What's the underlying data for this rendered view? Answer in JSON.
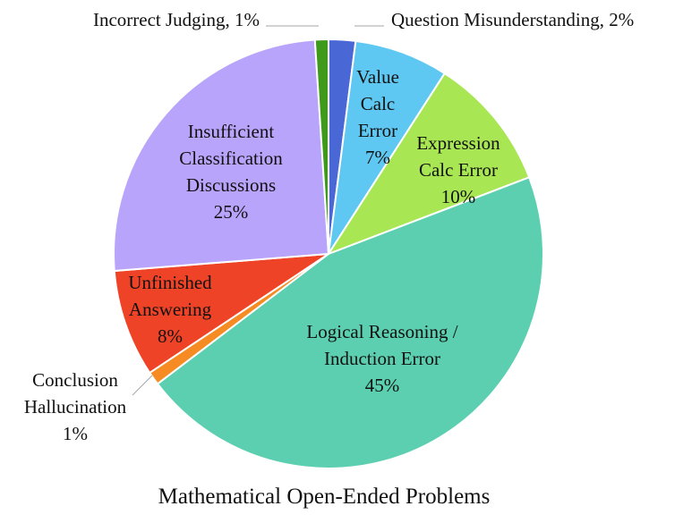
{
  "chart_data": {
    "type": "pie",
    "title": "Mathematical Open-Ended Problems",
    "slices": [
      {
        "label": "Question Misunderstanding",
        "value": 2,
        "percent_label": "2%",
        "color": "#4a67d6"
      },
      {
        "label": "Value Calc Error",
        "value": 7,
        "percent_label": "7%",
        "color": "#5ec8f2"
      },
      {
        "label": "Expression Calc Error",
        "value": 10,
        "percent_label": "10%",
        "color": "#a8e653"
      },
      {
        "label": "Logical Reasoning / Induction Error",
        "value": 45,
        "percent_label": "45%",
        "color": "#5ccfb0"
      },
      {
        "label": "Conclusion Hallucination",
        "value": 1,
        "percent_label": "1%",
        "color": "#f58b22"
      },
      {
        "label": "Unfinished Answering",
        "value": 8,
        "percent_label": "8%",
        "color": "#ee4326"
      },
      {
        "label": "Insufficient Classification Discussions",
        "value": 25,
        "percent_label": "25%",
        "color": "#b9a4fb"
      },
      {
        "label": "Incorrect Judging",
        "value": 1,
        "percent_label": "1%",
        "color": "#3f9a1c"
      }
    ],
    "display_labels": [
      [
        "Question Misunderstanding, 2%"
      ],
      [
        "Value",
        "Calc",
        "Error",
        "7%"
      ],
      [
        "Expression",
        "Calc Error",
        "10%"
      ],
      [
        "Logical Reasoning /",
        "Induction Error",
        "45%"
      ],
      [
        "Conclusion",
        "Hallucination",
        "1%"
      ],
      [
        "Unfinished",
        "Answering",
        "8%"
      ],
      [
        "Insufficient",
        "Classification",
        "Discussions",
        "25%"
      ],
      [
        "Incorrect Judging, 1%"
      ]
    ],
    "start_angle_deg": 0,
    "direction": "clockwise",
    "legend": "none"
  }
}
